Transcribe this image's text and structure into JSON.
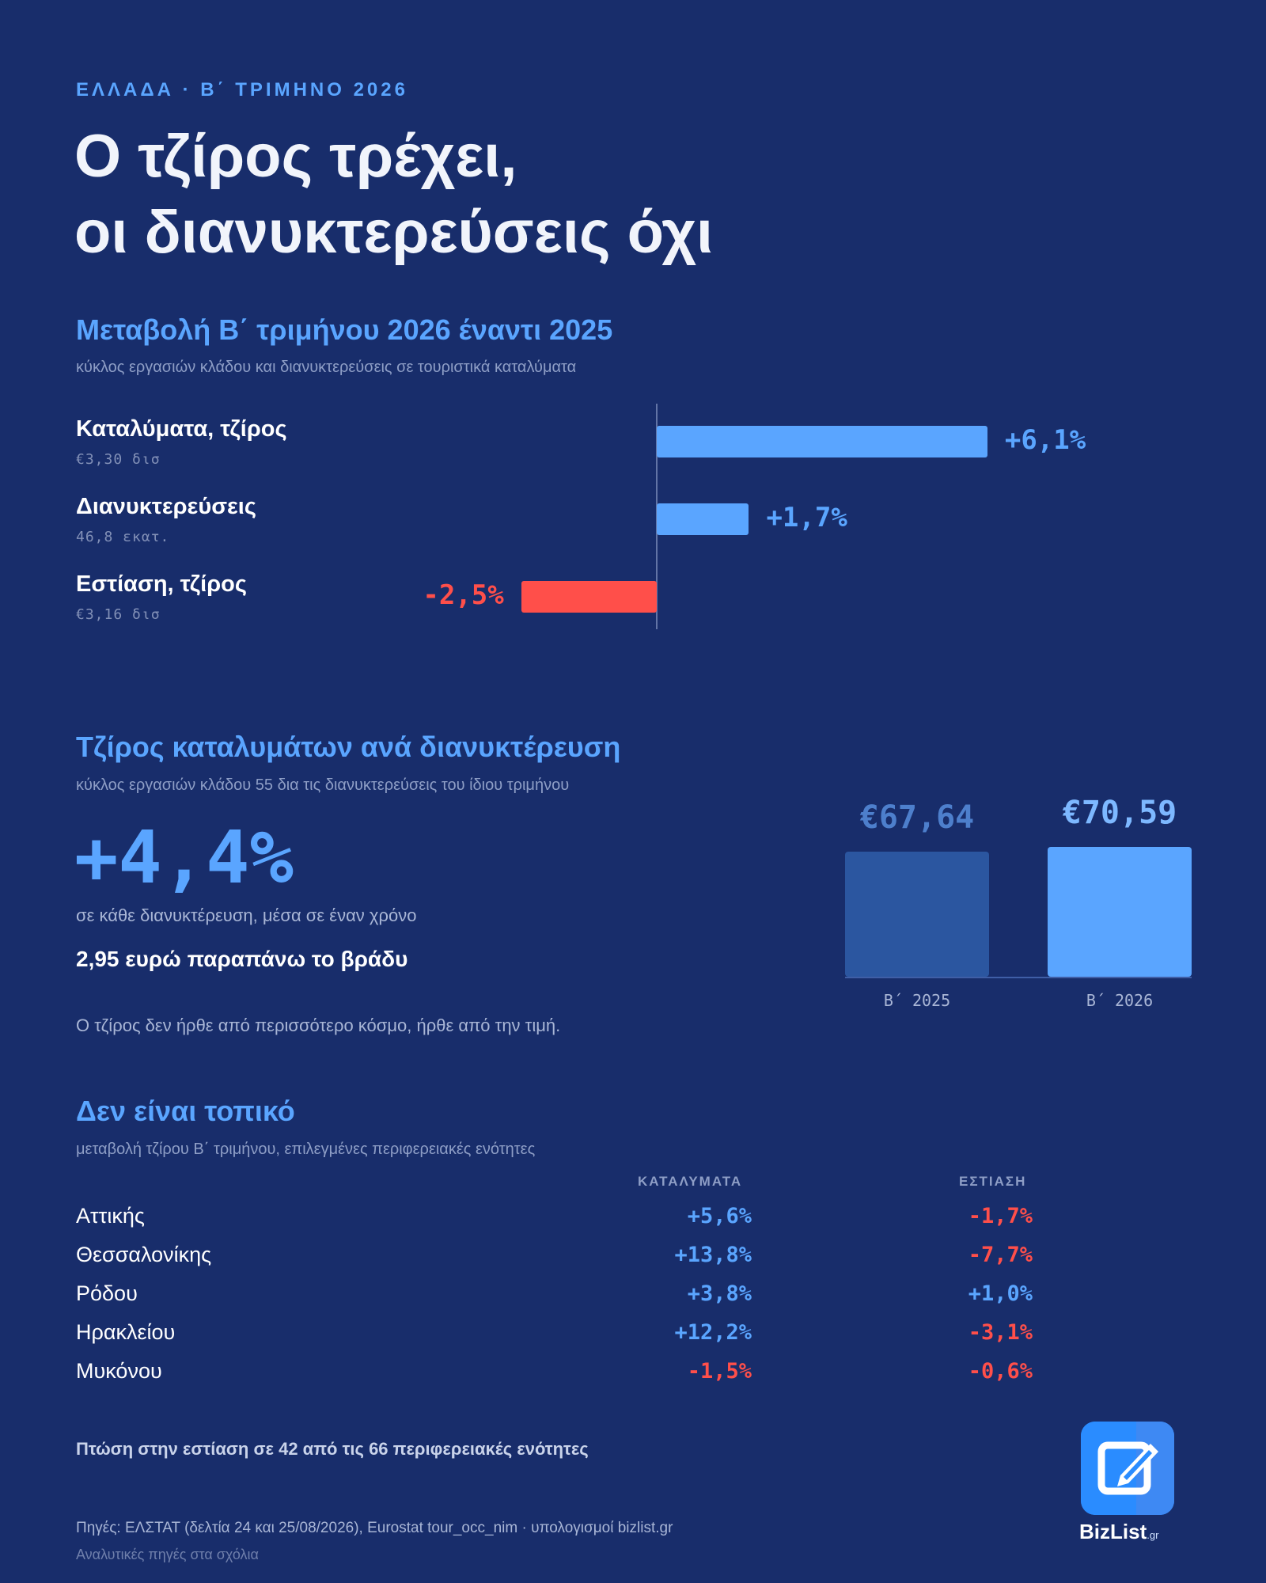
{
  "header": {
    "eyebrow": "ΕΛΛΑΔΑ · Β΄ ΤΡΙΜΗΝΟ 2026",
    "title_line1": "Ο τζίρος τρέχει,",
    "title_line2": "οι διανυκτερεύσεις όχι"
  },
  "section1": {
    "title": "Μεταβολή Β΄ τριμήνου 2026 έναντι 2025",
    "subtitle": "κύκλος εργασιών κλάδου και διανυκτερεύσεις σε τουριστικά καταλύματα"
  },
  "section2": {
    "title": "Τζίρος καταλυμάτων ανά διανυκτέρευση",
    "subtitle": "κύκλος εργασιών κλάδου 55 δια τις διανυκτερεύσεις του ίδιου τριμήνου",
    "big_value": "+4,4%",
    "big_caption": "σε κάθε διανυκτέρευση, μέσα σε έναν χρόνο",
    "highlight": "2,95 ευρώ παραπάνω το βράδυ",
    "note": "Ο τζίρος δεν ήρθε από περισσότερο κόσμο, ήρθε από την τιμή."
  },
  "section3": {
    "title": "Δεν είναι τοπικό",
    "subtitle": "μεταβολή τζίρου Β΄ τριμήνου, επιλεγμένες περιφερειακές ενότητες",
    "columns": [
      "ΚΑΤΑΛΥΜΑΤΑ",
      "ΕΣΤΙΑΣΗ"
    ],
    "rows": [
      {
        "name": "Αττικής",
        "accommodation": "+5,6%",
        "food": "-1,7%"
      },
      {
        "name": "Θεσσαλονίκης",
        "accommodation": "+13,8%",
        "food": "-7,7%"
      },
      {
        "name": "Ρόδου",
        "accommodation": "+3,8%",
        "food": "+1,0%"
      },
      {
        "name": "Ηρακλείου",
        "accommodation": "+12,2%",
        "food": "-3,1%"
      },
      {
        "name": "Μυκόνου",
        "accommodation": "-1,5%",
        "food": "-0,6%"
      }
    ],
    "footnote": "Πτώση στην εστίαση σε 42 από τις 66 περιφερειακές ενότητες"
  },
  "footer": {
    "source": "Πηγές: ΕΛΣΤΑΤ (δελτία 24 και 25/08/2026), Eurostat tour_occ_nim · υπολογισμοί bizlist.gr",
    "source_note": "Αναλυτικές πηγές στα σχόλια",
    "logo_text": "BizList",
    "logo_suffix": ".gr"
  },
  "colors": {
    "background": "#182d6b",
    "positive": "#5aa5ff",
    "negative": "#ff4f4a",
    "bar_2025": "#2b56a0",
    "bar_2026": "#5aa5ff"
  },
  "chart_data": [
    {
      "type": "bar",
      "orientation": "horizontal",
      "title": "Μεταβολή Β΄ τριμήνου 2026 έναντι 2025",
      "categories": [
        "Καταλύματα, τζίρος",
        "Διανυκτερεύσεις",
        "Εστίαση, τζίρος"
      ],
      "category_notes": [
        "€3,30 δισ",
        "46,8 εκατ.",
        "€3,16 δισ"
      ],
      "values": [
        6.1,
        1.7,
        -2.5
      ],
      "value_labels": [
        "+6,1%",
        "+1,7%",
        "-2,5%"
      ]
    },
    {
      "type": "bar",
      "categories": [
        "Β΄ 2025",
        "Β΄ 2026"
      ],
      "values": [
        67.64,
        70.59
      ],
      "value_labels": [
        "€67,64",
        "€70,59"
      ]
    }
  ]
}
